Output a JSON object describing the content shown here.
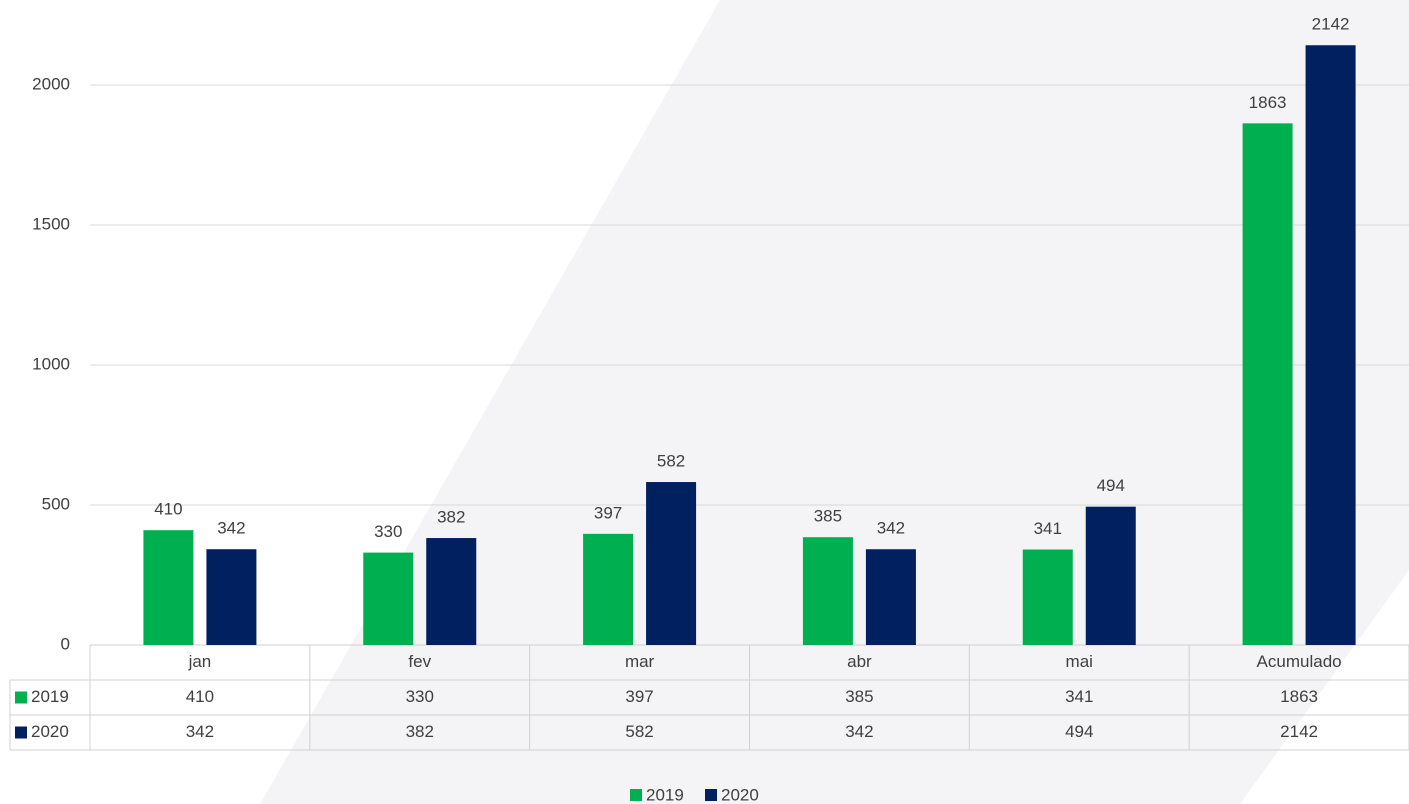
{
  "chart_data": {
    "type": "bar",
    "categories": [
      "jan",
      "fev",
      "mar",
      "abr",
      "mai",
      "Acumulado"
    ],
    "series": [
      {
        "name": "2019",
        "color": "#00b050",
        "values": [
          410,
          330,
          397,
          385,
          341,
          1863
        ]
      },
      {
        "name": "2020",
        "color": "#002060",
        "values": [
          342,
          382,
          582,
          342,
          494,
          2142
        ]
      }
    ],
    "ylim": [
      0,
      2250
    ],
    "yticks": [
      0,
      500,
      1000,
      1500,
      2000
    ],
    "grid": true,
    "legend": "bottom"
  }
}
